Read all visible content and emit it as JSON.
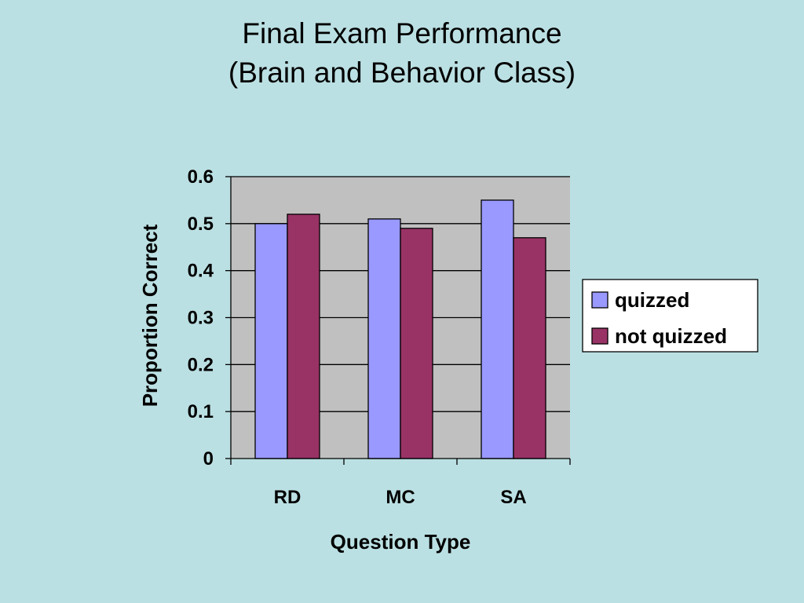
{
  "title_lines": [
    "Final Exam Performance",
    "(Brain and Behavior Class)"
  ],
  "chart_data": {
    "type": "bar",
    "title": "Final Exam Performance (Brain and Behavior Class)",
    "categories": [
      "RD",
      "MC",
      "SA"
    ],
    "series": [
      {
        "name": "quizzed",
        "values": [
          0.5,
          0.51,
          0.55
        ],
        "color": "#9999ff"
      },
      {
        "name": "not quizzed",
        "values": [
          0.52,
          0.49,
          0.47
        ],
        "color": "#993366"
      }
    ],
    "xlabel": "Question Type",
    "ylabel": "Proportion Correct",
    "ylim": [
      0,
      0.6
    ],
    "yticks": [
      "0",
      "0.1",
      "0.2",
      "0.3",
      "0.4",
      "0.5",
      "0.6"
    ],
    "grid": true,
    "plot_background": "#c0c0c0",
    "legend_position": "right"
  }
}
